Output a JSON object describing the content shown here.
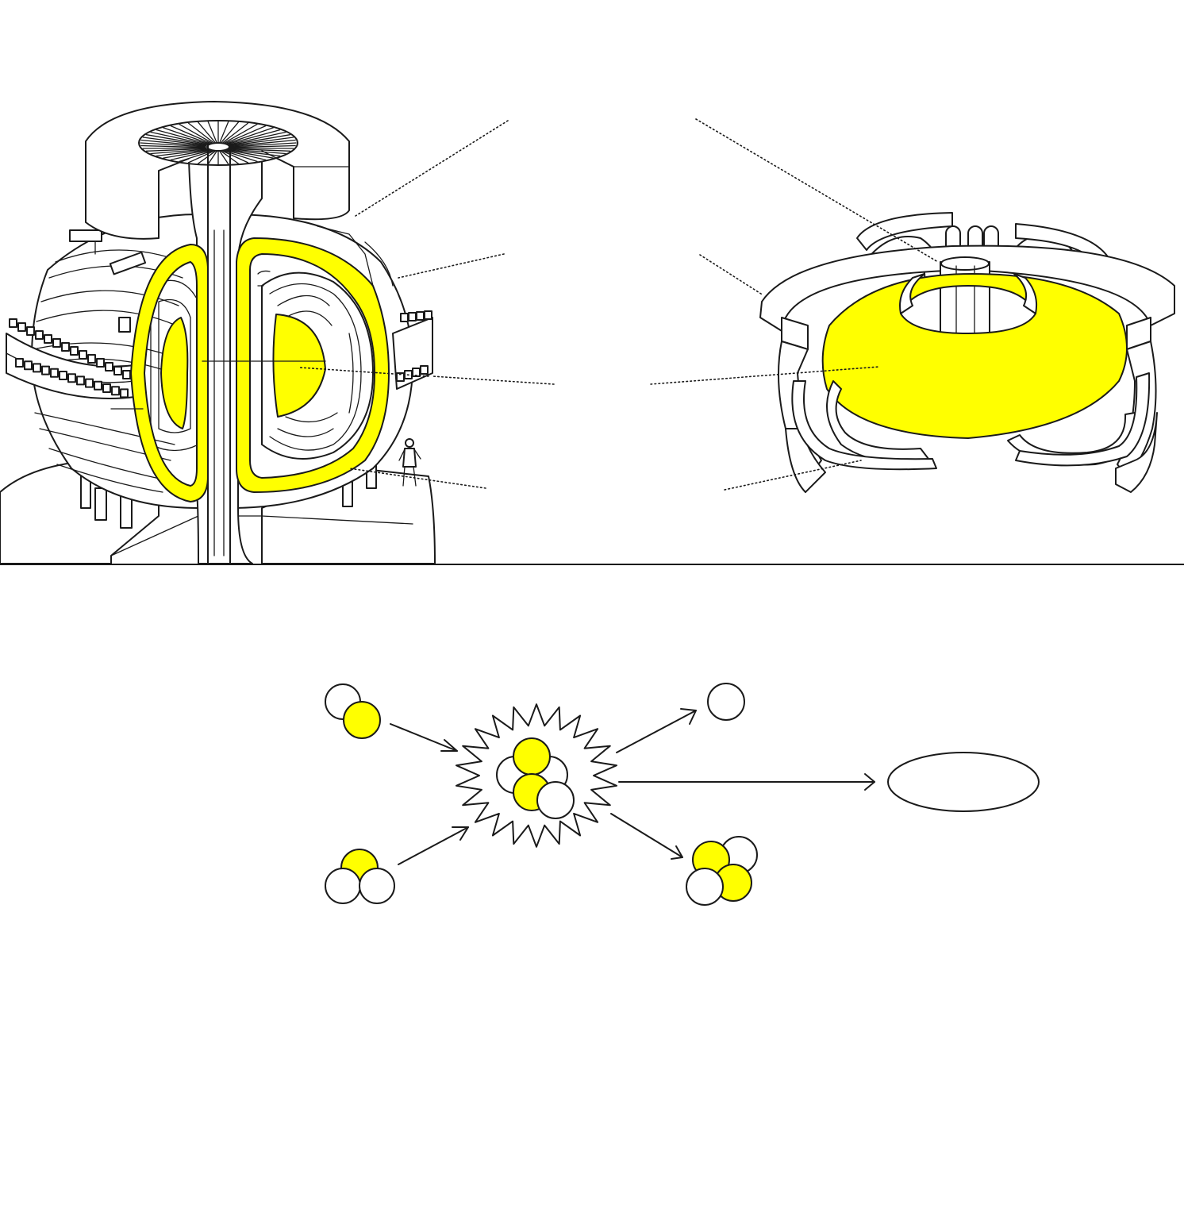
{
  "colors": {
    "highlight": "#ffff00",
    "ink": "#1a1a1a",
    "background": "#ffffff"
  },
  "reactants": [
    {
      "particle": "deuterium",
      "protons": 1,
      "neutrons": 1
    },
    {
      "particle": "tritium",
      "protons": 1,
      "neutrons": 2
    }
  ],
  "compound": {
    "protons": 2,
    "neutrons": 3
  },
  "products": [
    {
      "particle": "neutron",
      "protons": 0,
      "neutrons": 1
    },
    {
      "particle": "helium-4",
      "protons": 2,
      "neutrons": 2
    }
  ],
  "energy_output": {
    "shape": "ellipse",
    "text": ""
  }
}
